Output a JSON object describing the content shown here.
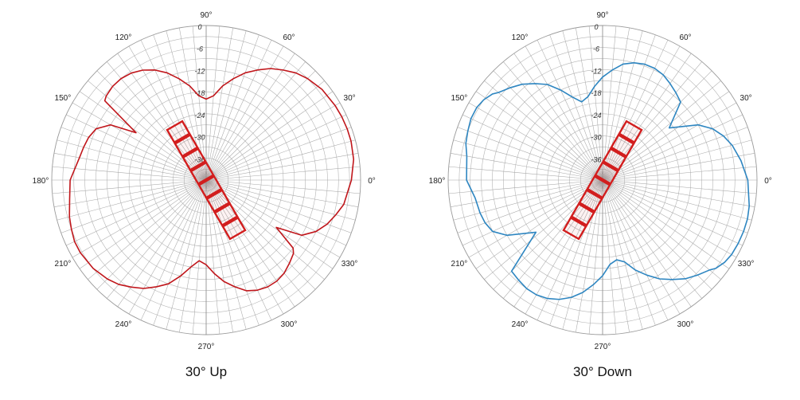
{
  "chart_data": [
    {
      "type": "polar-line",
      "title": "30° Up",
      "color": "#c0161b",
      "tilt_deg": 30,
      "radial_ticks": [
        "0",
        "-6",
        "-12",
        "-18",
        "-24",
        "-30",
        "-36"
      ],
      "angle_labels": [
        "0°",
        "30°",
        "60°",
        "90°",
        "120°",
        "150°",
        "180°",
        "210°",
        "240°",
        "270°",
        "300°",
        "330°"
      ],
      "angles_deg": [
        0,
        8,
        15,
        20,
        25,
        30,
        38,
        45,
        50,
        55,
        60,
        65,
        70,
        75,
        80,
        85,
        90,
        95,
        100,
        105,
        110,
        115,
        120,
        125,
        130,
        135,
        140,
        142,
        146,
        150,
        155,
        160,
        165,
        170,
        180,
        188,
        195,
        200,
        205,
        210,
        218,
        225,
        230,
        235,
        240,
        245,
        250,
        255,
        260,
        265,
        270,
        275,
        280,
        285,
        290,
        295,
        300,
        305,
        310,
        315,
        320,
        322,
        326,
        330,
        335,
        340,
        345,
        350,
        360
      ],
      "values_db": [
        -2.5,
        -1.5,
        -1.2,
        -1.2,
        -1.3,
        -1.5,
        -2,
        -3,
        -4,
        -5.5,
        -7,
        -9,
        -11,
        -13.5,
        -16,
        -19,
        -20,
        -19,
        -16,
        -13.5,
        -11,
        -9,
        -7.5,
        -6.5,
        -6,
        -6,
        -6.5,
        -7,
        -19,
        -12,
        -9,
        -8,
        -7.5,
        -7,
        -5,
        -4.5,
        -3.5,
        -3,
        -2.5,
        -2.5,
        -3,
        -4,
        -5,
        -6.5,
        -8,
        -10,
        -12,
        -15,
        -18,
        -20,
        -19,
        -16.5,
        -14,
        -12,
        -10,
        -9,
        -8.5,
        -8.5,
        -9,
        -10,
        -11,
        -12,
        -19,
        -12,
        -9,
        -7,
        -5.5,
        -4,
        -2.5
      ]
    },
    {
      "type": "polar-line",
      "title": "30° Down",
      "color": "#2e86c1",
      "tilt_deg": -30,
      "radial_ticks": [
        "0",
        "-6",
        "-12",
        "-18",
        "-24",
        "-30",
        "-36"
      ],
      "angle_labels": [
        "0°",
        "30°",
        "60°",
        "90°",
        "120°",
        "150°",
        "180°",
        "210°",
        "240°",
        "270°",
        "300°",
        "330°"
      ],
      "angles_deg": [
        0,
        8,
        15,
        20,
        25,
        30,
        38,
        45,
        50,
        55,
        60,
        65,
        70,
        75,
        80,
        85,
        90,
        95,
        100,
        105,
        110,
        115,
        120,
        125,
        130,
        135,
        140,
        142,
        146,
        150,
        155,
        160,
        165,
        170,
        180,
        188,
        195,
        200,
        205,
        210,
        218,
        225,
        230,
        235,
        240,
        245,
        250,
        255,
        260,
        265,
        270,
        275,
        280,
        285,
        290,
        295,
        300,
        305,
        310,
        315,
        320,
        322,
        326,
        330,
        335,
        340,
        345,
        350,
        360
      ],
      "values_db": [
        -2.5,
        -4,
        -5.5,
        -7,
        -9,
        -12,
        -19,
        -12,
        -11,
        -10,
        -9,
        -8.5,
        -8.5,
        -9,
        -10,
        -12,
        -14,
        -16.5,
        -19,
        -20,
        -18,
        -15,
        -12,
        -10,
        -8,
        -6.5,
        -5,
        -4,
        -3,
        -2.5,
        -2.5,
        -3,
        -3.5,
        -4.5,
        -5,
        -7,
        -7.5,
        -8,
        -9,
        -12,
        -19,
        -7,
        -6.5,
        -6,
        -6,
        -6.5,
        -7.5,
        -9,
        -11,
        -13.5,
        -16,
        -19,
        -20,
        -19,
        -16,
        -13.5,
        -11,
        -9,
        -7,
        -5.5,
        -4,
        -3,
        -2,
        -1.5,
        -1.3,
        -1.2,
        -1.2,
        -1.5,
        -2.5
      ]
    }
  ]
}
